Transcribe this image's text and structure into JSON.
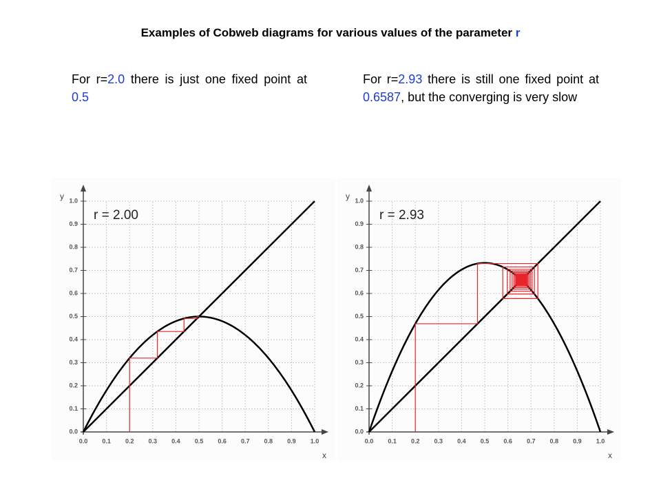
{
  "title": {
    "text": "Examples of Cobweb diagrams for various values of the parameter",
    "param": "r"
  },
  "texts": [
    {
      "parts": [
        "For r=",
        "2.0",
        " there is just one fixed point at ",
        "0.5"
      ]
    },
    {
      "parts": [
        "For r=",
        "2.93",
        " there is still one fixed point at ",
        "0.6587",
        ", but the converging is very slow"
      ]
    }
  ],
  "chart_data": [
    {
      "type": "cobweb",
      "annotation": "r = 2.00",
      "r": 2,
      "x0": 0.2,
      "iterations": 5,
      "x_label": "x",
      "y_label": "y",
      "xlim": [
        0,
        1
      ],
      "ylim": [
        0,
        1
      ],
      "grid": true,
      "xticks": [
        {
          "value": 0,
          "label": "0.0"
        },
        0.1,
        0.2,
        0.3,
        0.4,
        0.5,
        0.6,
        0.7,
        0.8,
        0.9,
        {
          "value": 1,
          "label": "1.0"
        }
      ],
      "yticks": [
        {
          "value": 0,
          "label": "0.0"
        },
        0.1,
        0.2,
        0.3,
        0.4,
        0.5,
        0.6,
        0.7,
        0.8,
        0.9,
        {
          "value": 1,
          "label": "1.0"
        }
      ],
      "curve_color": "#000000",
      "cobweb_color": "#e8242a"
    },
    {
      "type": "cobweb",
      "annotation": "r = 2.93",
      "r": 2.93,
      "x0": 0.2,
      "iterations": 80,
      "x_label": "x",
      "y_label": "y",
      "xlim": [
        0,
        1
      ],
      "ylim": [
        0,
        1
      ],
      "grid": true,
      "xticks": [
        {
          "value": 0,
          "label": "0.0"
        },
        0.1,
        0.2,
        0.3,
        0.4,
        0.5,
        0.6,
        0.7,
        0.8,
        0.9,
        {
          "value": 1,
          "label": "1.0"
        }
      ],
      "yticks": [
        {
          "value": 0,
          "label": "0.0"
        },
        0.1,
        0.2,
        0.3,
        0.4,
        0.5,
        0.6,
        0.7,
        0.8,
        0.9,
        {
          "value": 1,
          "label": "1.0"
        }
      ],
      "curve_color": "#000000",
      "cobweb_color": "#e8242a"
    }
  ]
}
